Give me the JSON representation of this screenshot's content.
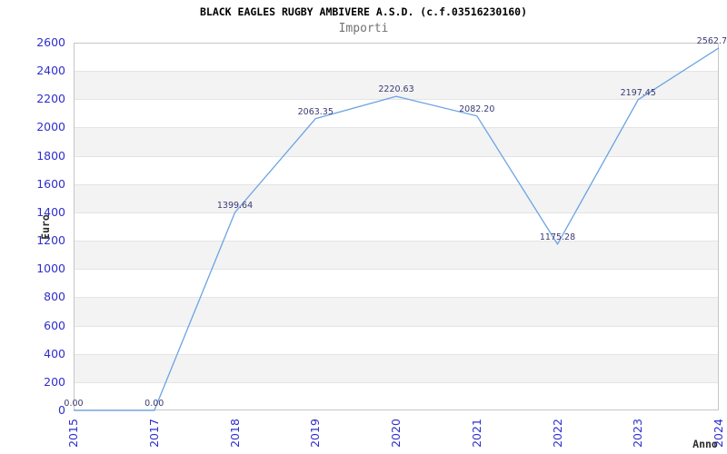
{
  "header": {
    "title": "BLACK EAGLES RUGBY AMBIVERE A.S.D. (c.f.03516230160)",
    "subtitle": "Importi"
  },
  "chart_data": {
    "type": "line",
    "title": "BLACK EAGLES RUGBY AMBIVERE A.S.D. (c.f.03516230160)",
    "subtitle": "Importi",
    "xlabel": "Anno",
    "ylabel": "Euro",
    "x": [
      "2015",
      "2017",
      "2018",
      "2019",
      "2020",
      "2021",
      "2022",
      "2023",
      "2024"
    ],
    "values": [
      0.0,
      0.0,
      1399.64,
      2063.35,
      2220.63,
      2082.2,
      1175.28,
      2197.45,
      2562.7
    ],
    "point_labels": [
      "0.00",
      "0.00",
      "1399.64",
      "2063.35",
      "2220.63",
      "2082.20",
      "1175.28",
      "2197.45",
      "2562.7"
    ],
    "ylim": [
      0,
      2600
    ],
    "yticks": [
      0,
      200,
      400,
      600,
      800,
      1000,
      1200,
      1400,
      1600,
      1800,
      2000,
      2200,
      2400,
      2600
    ],
    "grid": "alternating-horizontal-bands",
    "legend": null,
    "colors": {
      "line": "#6ba3e4",
      "tick_label": "#2e2ecf",
      "point_label": "#3a3a75",
      "band": "#f3f3f3",
      "gridline": "#e4e4e4",
      "plot_border": "#c6c6c6",
      "title": "#000000",
      "subtitle": "#737373",
      "axis_label": "#2b2b2b"
    }
  }
}
